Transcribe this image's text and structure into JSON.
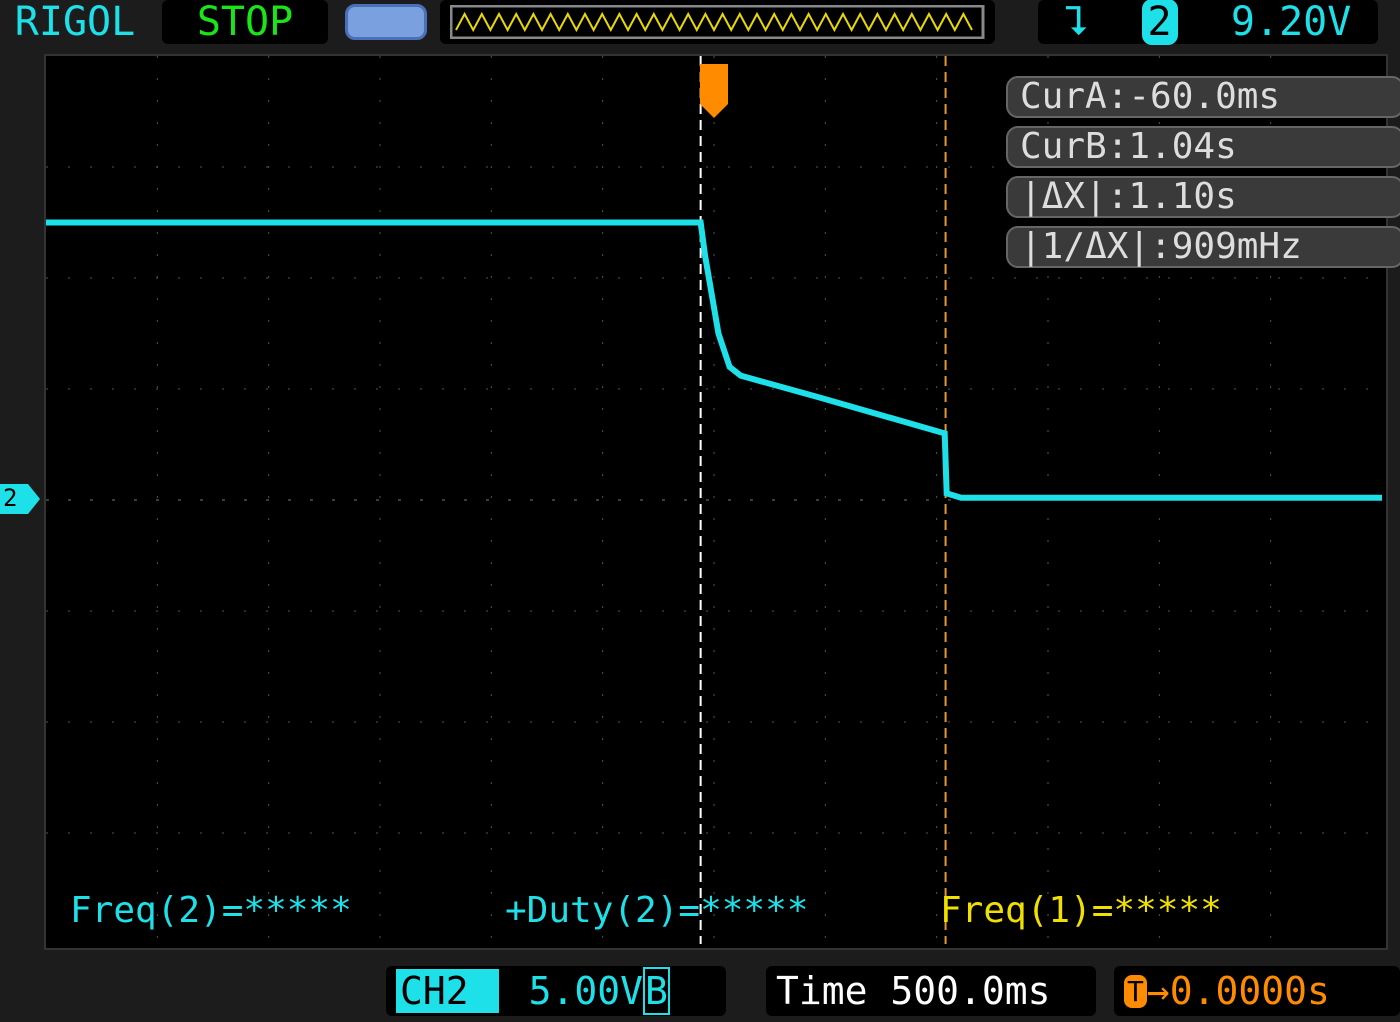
{
  "header": {
    "brand": "RIGOL",
    "run_state": "STOP",
    "trigger_edge_icon": "falling-edge-icon",
    "trigger_source": "2",
    "trigger_level": "9.20V"
  },
  "cursors": {
    "cur_a": "CurA:-60.0ms",
    "cur_b": "CurB:1.04s",
    "delta_x": "|ΔX|:1.10s",
    "inv_delta_x": "|1/ΔX|:909mHz",
    "cur_a_time_s": -0.06,
    "cur_b_time_s": 1.04
  },
  "measurements": {
    "freq2": "Freq(2)=*****",
    "duty2": "+Duty(2)=*****",
    "freq1": "Freq(1)=*****"
  },
  "channel": {
    "label": "CH2",
    "marker": "2",
    "scale": "5.00V",
    "bw_icon": "B",
    "color": "#1ee0e8"
  },
  "timebase": {
    "label": "Time 500.0ms",
    "offset": "0.0000s",
    "trigger_marker": "T"
  },
  "colors": {
    "trace": "#1ee0e8",
    "cursor_a": "#ffffff",
    "cursor_b": "#e09a30",
    "trigger": "#ff8c00",
    "meas_ch1": "#f0e000"
  },
  "waveform": {
    "volts_per_div": 5,
    "seconds_per_div": 0.5,
    "points": [
      [
        -3.0,
        12.5
      ],
      [
        -0.06,
        12.5
      ],
      [
        -0.04,
        11
      ],
      [
        0.02,
        7.5
      ],
      [
        0.07,
        6.0
      ],
      [
        0.12,
        5.6
      ],
      [
        0.48,
        4.6
      ],
      [
        1.036,
        3.0
      ],
      [
        1.045,
        0.3
      ],
      [
        1.11,
        0.1
      ],
      [
        3.0,
        0.1
      ]
    ]
  }
}
